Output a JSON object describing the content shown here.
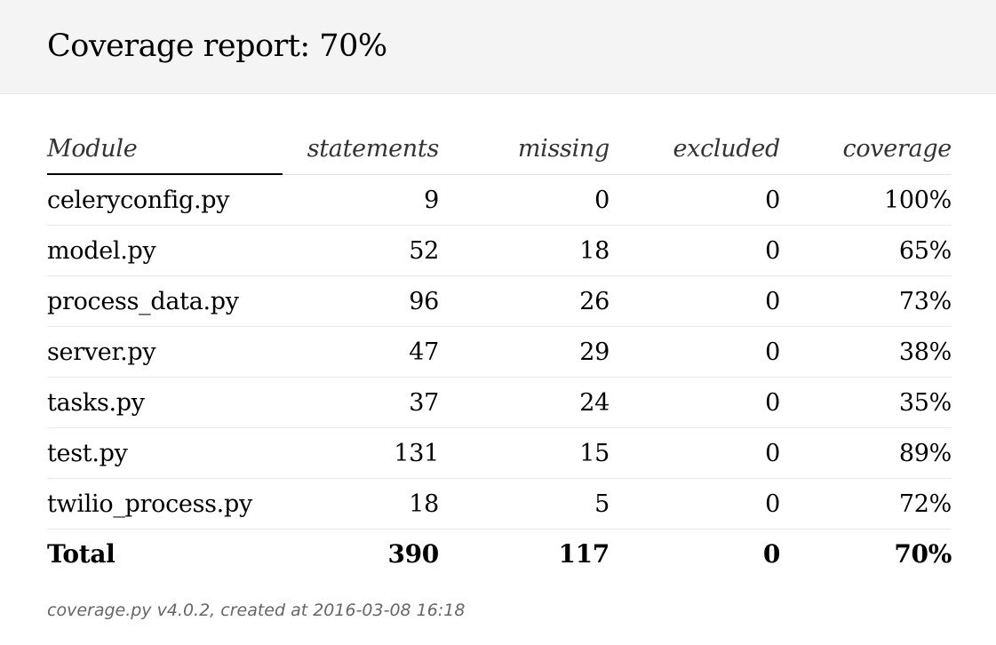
{
  "header": {
    "title": "Coverage report: 70%"
  },
  "table": {
    "columns": {
      "module": "Module",
      "statements": "statements",
      "missing": "missing",
      "excluded": "excluded",
      "coverage": "coverage"
    },
    "sort_column": "Module",
    "rows": [
      {
        "module": "celeryconfig.py",
        "statements": "9",
        "missing": "0",
        "excluded": "0",
        "coverage": "100%"
      },
      {
        "module": "model.py",
        "statements": "52",
        "missing": "18",
        "excluded": "0",
        "coverage": "65%"
      },
      {
        "module": "process_data.py",
        "statements": "96",
        "missing": "26",
        "excluded": "0",
        "coverage": "73%"
      },
      {
        "module": "server.py",
        "statements": "47",
        "missing": "29",
        "excluded": "0",
        "coverage": "38%"
      },
      {
        "module": "tasks.py",
        "statements": "37",
        "missing": "24",
        "excluded": "0",
        "coverage": "35%"
      },
      {
        "module": "test.py",
        "statements": "131",
        "missing": "15",
        "excluded": "0",
        "coverage": "89%"
      },
      {
        "module": "twilio_process.py",
        "statements": "18",
        "missing": "5",
        "excluded": "0",
        "coverage": "72%"
      }
    ],
    "total": {
      "module": "Total",
      "statements": "390",
      "missing": "117",
      "excluded": "0",
      "coverage": "70%"
    }
  },
  "footer": {
    "text": "coverage.py v4.0.2, created at 2016-03-08 16:18"
  }
}
